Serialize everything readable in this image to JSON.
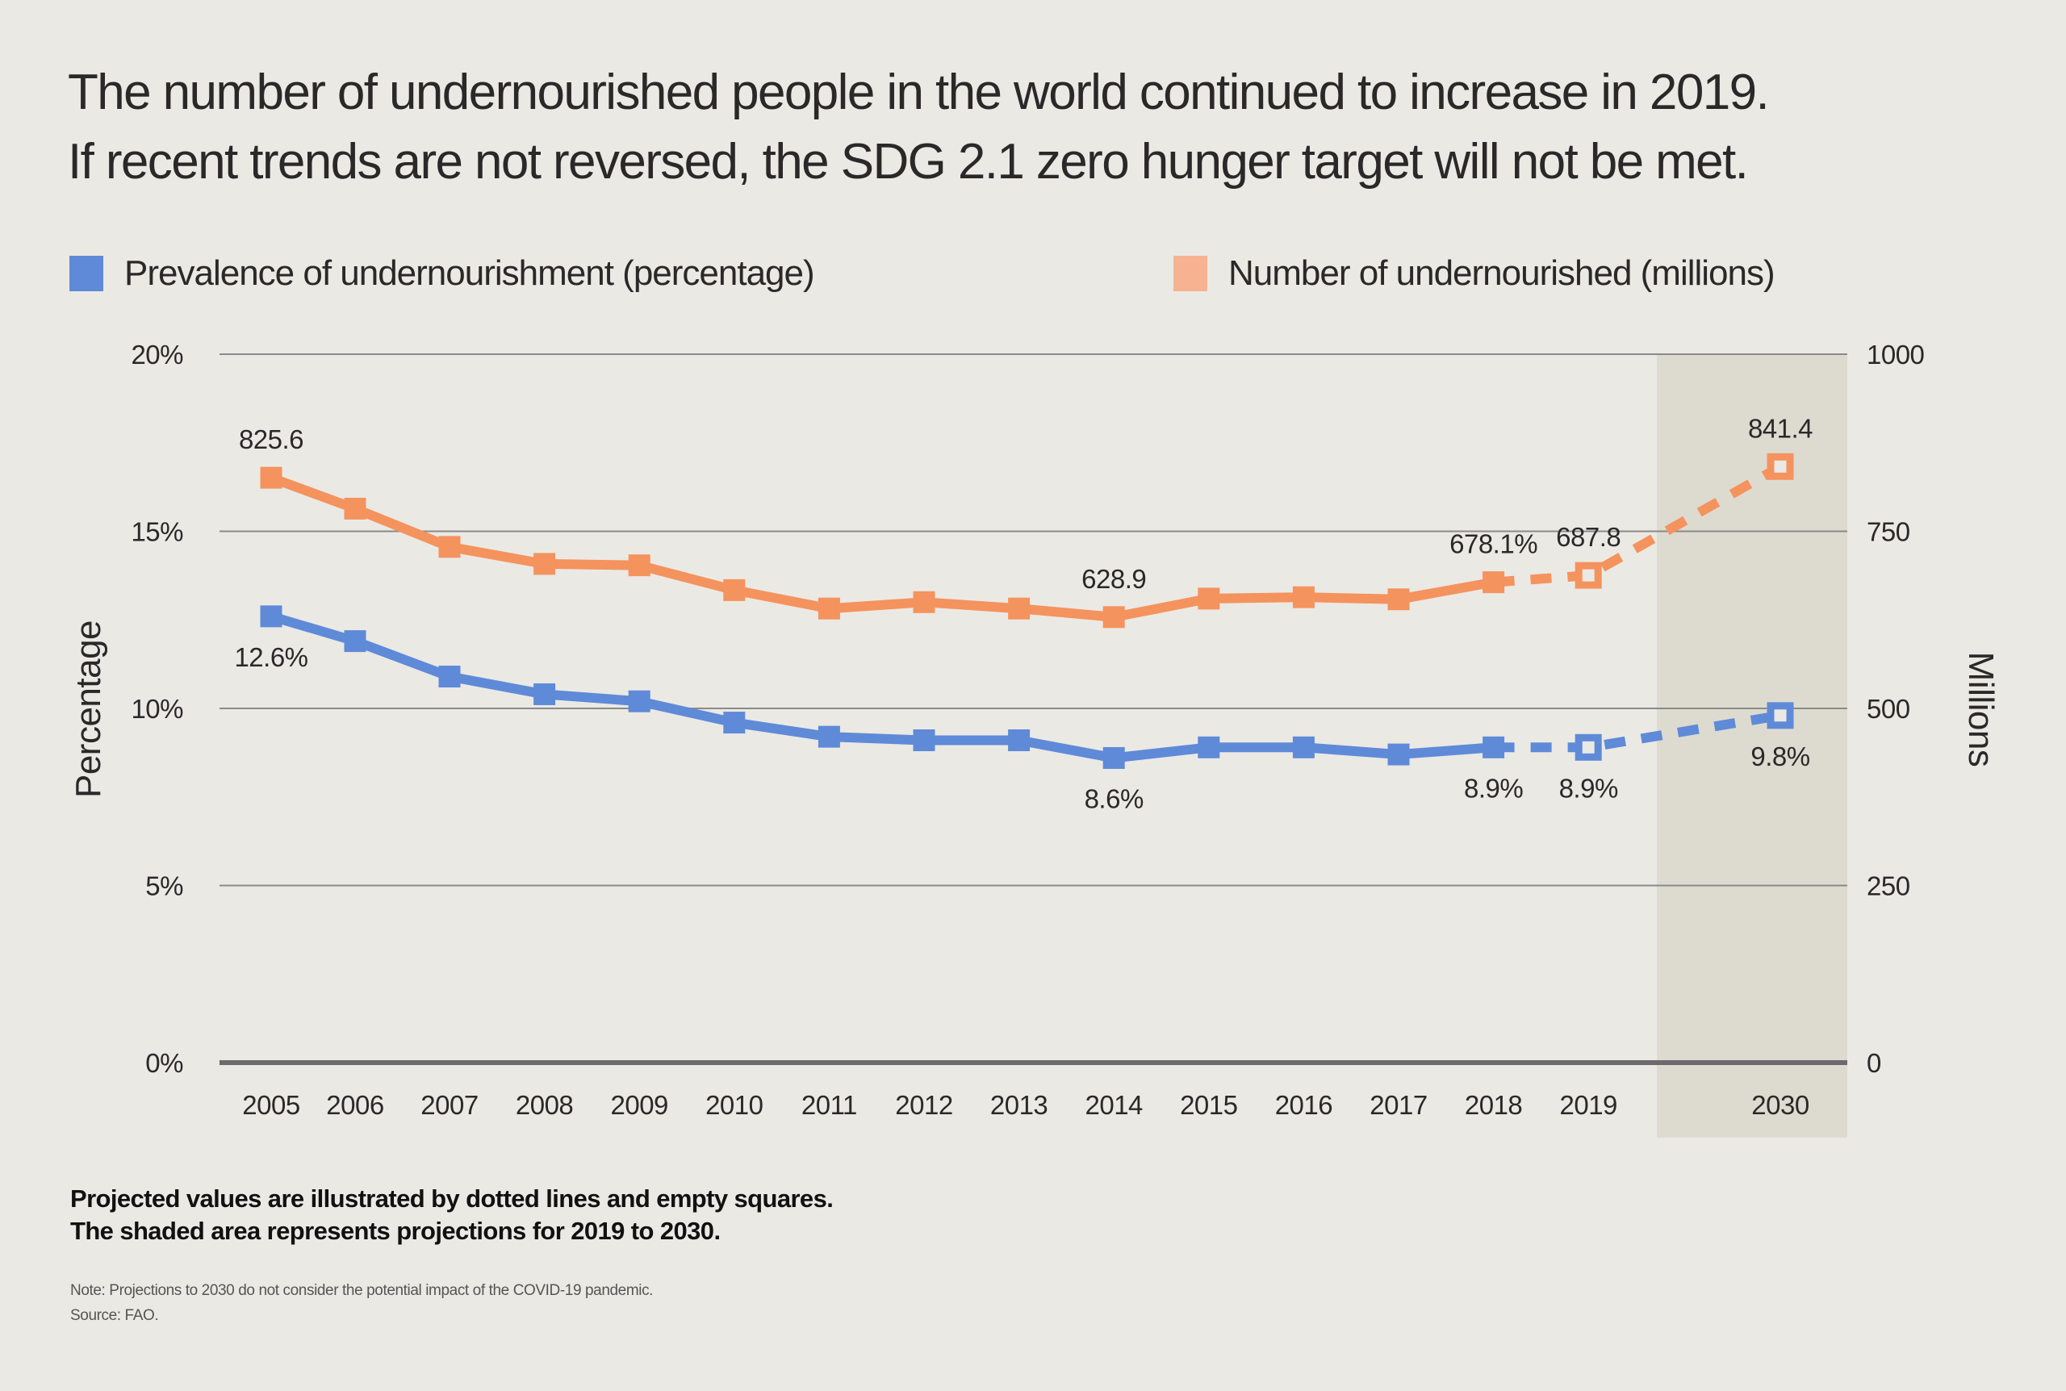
{
  "header": {
    "title_line1": "The number of undernourished people in the world continued to increase in 2019.",
    "title_line2": "If recent trends are not reversed, the SDG 2.1 zero hunger target will not be met."
  },
  "legend": [
    {
      "label": "Prevalence of undernourishment (percentage)",
      "color": "#5f8ad8"
    },
    {
      "label": "Number of undernourished (millions)",
      "color": "#f7b291"
    }
  ],
  "footer": {
    "explain_line1": "Projected values are illustrated by dotted lines and empty squares.",
    "explain_line2": "The shaded area represents projections for 2019 to 2030.",
    "note": "Note: Projections to 2030 do not consider the potential impact of the COVID-19 pandemic.",
    "source": "Source: FAO."
  },
  "chart_data": {
    "type": "line",
    "title": "The number of undernourished people in the world continued to increase in 2019. If recent trends are not reversed, the SDG 2.1 zero hunger target will not be met.",
    "categories": [
      "2005",
      "2006",
      "2007",
      "2008",
      "2009",
      "2010",
      "2011",
      "2012",
      "2013",
      "2014",
      "2015",
      "2016",
      "2017",
      "2018",
      "2019",
      "2030"
    ],
    "left_axis": {
      "label": "Percentage",
      "ylim": [
        0,
        20
      ],
      "ticks": [
        "0%",
        "5%",
        "10%",
        "15%",
        "20%"
      ],
      "tick_values": [
        0,
        5,
        10,
        15,
        20
      ]
    },
    "right_axis": {
      "label": "Millions",
      "ylim": [
        0,
        1000
      ],
      "ticks": [
        "0",
        "250",
        "500",
        "750",
        "1000"
      ],
      "tick_values": [
        0,
        250,
        500,
        750,
        1000
      ]
    },
    "grid": true,
    "shaded_region": {
      "from": "2019",
      "to": "2030",
      "color": "#dddbd0"
    },
    "projected_from_index": 14,
    "series": [
      {
        "name": "Prevalence of undernourishment (percentage)",
        "axis": "left",
        "color": "#5f8ad8",
        "values": [
          12.6,
          11.9,
          10.9,
          10.4,
          10.2,
          9.6,
          9.2,
          9.1,
          9.1,
          8.6,
          8.9,
          8.9,
          8.7,
          8.9,
          8.9,
          9.8
        ],
        "labels": [
          {
            "index": 0,
            "text": "12.6%",
            "position": "below"
          },
          {
            "index": 9,
            "text": "8.6%",
            "position": "below"
          },
          {
            "index": 13,
            "text": "8.9%",
            "position": "below"
          },
          {
            "index": 14,
            "text": "8.9%",
            "position": "below"
          },
          {
            "index": 15,
            "text": "9.8%",
            "position": "below"
          }
        ]
      },
      {
        "name": "Number of undernourished (millions)",
        "axis": "right",
        "color": "#f4935e",
        "values": [
          825.6,
          782,
          728,
          704,
          702,
          667,
          641,
          650,
          641,
          628.9,
          655,
          657,
          654,
          678.1,
          687.8,
          841.4
        ],
        "labels": [
          {
            "index": 0,
            "text": "825.6",
            "position": "above"
          },
          {
            "index": 9,
            "text": "628.9",
            "position": "above"
          },
          {
            "index": 13,
            "text": "678.1%",
            "position": "above"
          },
          {
            "index": 14,
            "text": "687.8",
            "position": "above"
          },
          {
            "index": 15,
            "text": "841.4",
            "position": "above"
          }
        ]
      }
    ]
  }
}
